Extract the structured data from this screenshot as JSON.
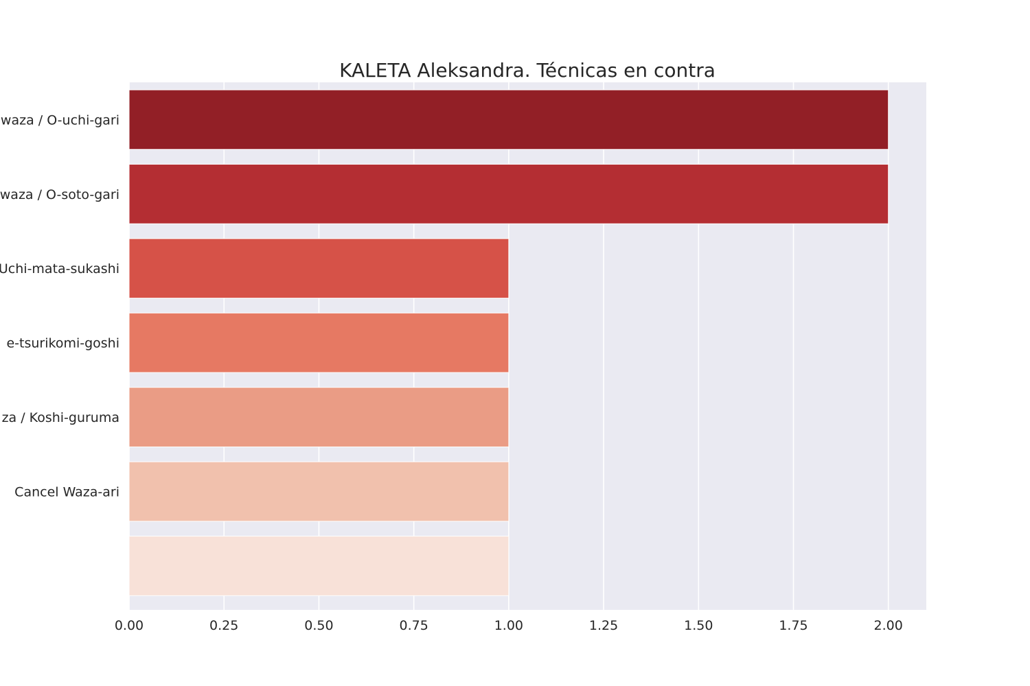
{
  "chart_data": {
    "type": "bar",
    "orientation": "horizontal",
    "title": "KALETA Aleksandra. Técnicas en contra",
    "categories": [
      "waza / O-uchi-gari",
      "waza / O-soto-gari",
      "Uchi-mata-sukashi",
      "e-tsurikomi-goshi",
      "za / Koshi-guruma",
      "Cancel Waza-ari",
      ""
    ],
    "values": [
      2,
      2,
      1,
      1,
      1,
      1,
      1
    ],
    "xlim": [
      0,
      2.1
    ],
    "xticks": [
      "0.00",
      "0.25",
      "0.50",
      "0.75",
      "1.00",
      "1.25",
      "1.50",
      "1.75",
      "2.00"
    ],
    "xlabel": "",
    "ylabel": "",
    "grid": true,
    "colors": [
      "#921f26",
      "#b42e33",
      "#d65248",
      "#e67963",
      "#ea9c85",
      "#f1c1ad",
      "#f8e1d8"
    ],
    "background": "#eaeaf2"
  }
}
